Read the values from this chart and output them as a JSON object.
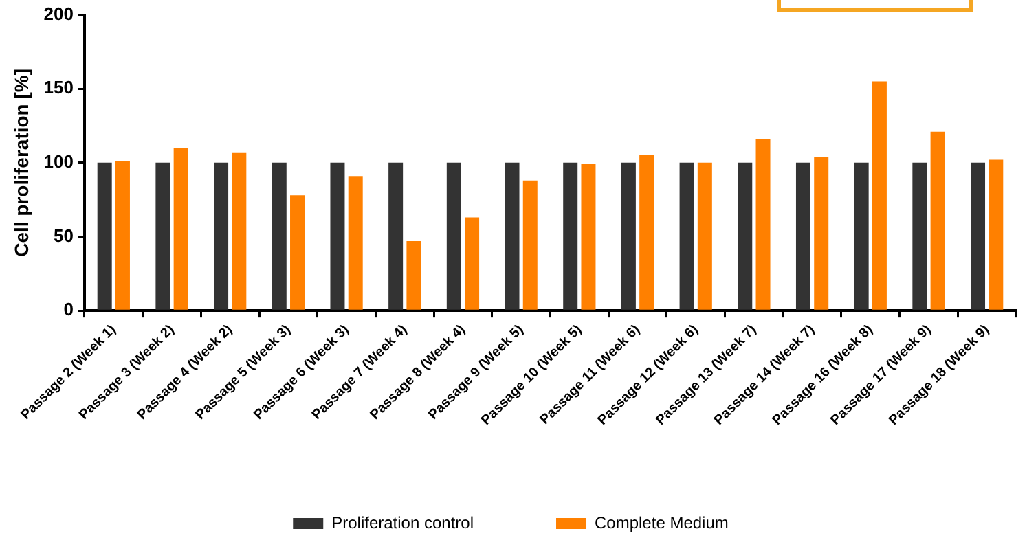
{
  "chart_data": {
    "type": "bar",
    "ylabel": "Cell proliferation [%]",
    "categories": [
      "Passage 2 (Week 1)",
      "Passage 3 (Week 2)",
      "Passage 4 (Week 2)",
      "Passage 5 (Week 3)",
      "Passage 6 (Week 3)",
      "Passage 7 (Week 4)",
      "Passage 8 (Week 4)",
      "Passage 9 (Week 5)",
      "Passage 10 (Week 5)",
      "Passage 11 (Week 6)",
      "Passage 12 (Week 6)",
      "Passage 13 (Week 7)",
      "Passage 14 (Week 7)",
      "Passage 16 (Week 8)",
      "Passage 17 (Week 9)",
      "Passage 18 (Week 9)"
    ],
    "series": [
      {
        "name": "Proliferation control",
        "color": "#333333",
        "values": [
          100,
          100,
          100,
          100,
          100,
          100,
          100,
          100,
          100,
          100,
          100,
          100,
          100,
          100,
          100,
          100
        ]
      },
      {
        "name": "Complete Medium",
        "color": "#ff8000",
        "values": [
          101,
          110,
          107,
          78,
          91,
          47,
          63,
          88,
          99,
          105,
          100,
          116,
          104,
          155,
          121,
          102
        ]
      }
    ],
    "ylim": [
      0,
      200
    ],
    "yticks": [
      0,
      50,
      100,
      150,
      200
    ],
    "grid": false,
    "legend": "bottom"
  }
}
